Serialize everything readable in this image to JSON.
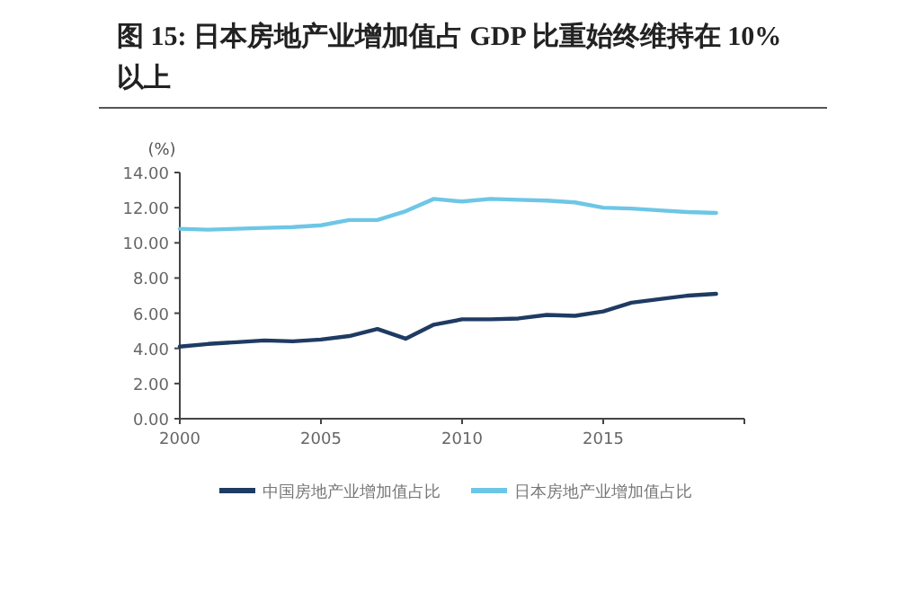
{
  "chart_data": {
    "type": "line",
    "title": "图 15: 日本房地产业增加值占 GDP 比重始终维持在 10% 以上",
    "ylabel": "(%)",
    "x": [
      2000,
      2001,
      2002,
      2003,
      2004,
      2005,
      2006,
      2007,
      2008,
      2009,
      2010,
      2011,
      2012,
      2013,
      2014,
      2015,
      2016,
      2017,
      2018,
      2019
    ],
    "series": [
      {
        "name": "中国房地产业增加值占比",
        "color": "#1f3b63",
        "values": [
          4.1,
          4.25,
          4.35,
          4.45,
          4.4,
          4.5,
          4.7,
          5.1,
          4.55,
          5.35,
          5.65,
          5.65,
          5.7,
          5.9,
          5.85,
          6.1,
          6.6,
          6.8,
          7.0,
          7.1
        ]
      },
      {
        "name": "日本房地产业增加值占比",
        "color": "#6ec6e6",
        "values": [
          10.8,
          10.75,
          10.8,
          10.85,
          10.9,
          11.0,
          11.3,
          11.3,
          11.8,
          12.5,
          12.35,
          12.5,
          12.45,
          12.4,
          12.3,
          12.0,
          11.95,
          11.85,
          11.75,
          11.7
        ]
      }
    ],
    "xlim": [
      2000,
      2020
    ],
    "xticks": [
      2000,
      2005,
      2010,
      2015
    ],
    "ylim": [
      0,
      14
    ],
    "yticks": [
      {
        "value": 0,
        "label": "0.00"
      },
      {
        "value": 2,
        "label": "2.00"
      },
      {
        "value": 4,
        "label": "4.00"
      },
      {
        "value": 6,
        "label": "6.00"
      },
      {
        "value": 8,
        "label": "8.00"
      },
      {
        "value": 10,
        "label": "10.00"
      },
      {
        "value": 12,
        "label": "12.00"
      },
      {
        "value": 14,
        "label": "14.00"
      }
    ],
    "legend": "bottom"
  }
}
